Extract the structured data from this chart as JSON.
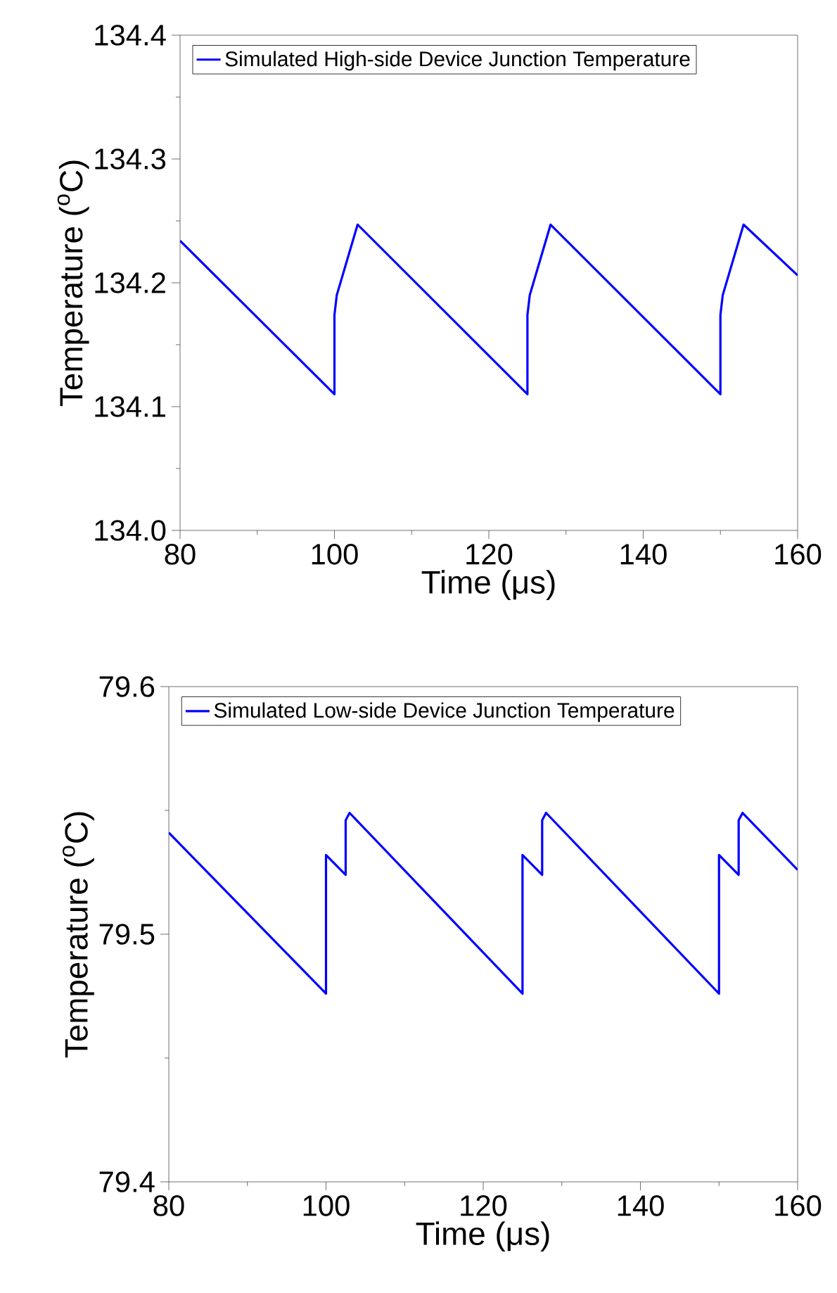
{
  "chart_data": [
    {
      "type": "line",
      "xlabel": "Time (μs)",
      "ylabel": "Temperature ($^{o}$C)",
      "xlim": [
        80,
        160
      ],
      "ylim": [
        134.0,
        134.4
      ],
      "xticks": [
        80,
        100,
        120,
        140,
        160
      ],
      "yticks": [
        {
          "value": 134.0,
          "label": "134.0"
        },
        {
          "value": 134.1,
          "label": "134.1"
        },
        {
          "value": 134.2,
          "label": "134.2"
        },
        {
          "value": 134.3,
          "label": "134.3"
        },
        {
          "value": 134.4,
          "label": "134.4"
        }
      ],
      "legend": "top left",
      "series": [
        {
          "name": "Simulated High-side Device Junction Temperature",
          "color": "#0000ff",
          "x": [
            80,
            100,
            100,
            100.3,
            103,
            125,
            125,
            125.3,
            128,
            150,
            150,
            150.3,
            153,
            160
          ],
          "values": [
            134.234,
            134.11,
            134.174,
            134.19,
            134.247,
            134.11,
            134.174,
            134.19,
            134.247,
            134.11,
            134.174,
            134.19,
            134.247,
            134.206
          ]
        }
      ]
    },
    {
      "type": "line",
      "xlabel": "Time (μs)",
      "ylabel": "Temperature ($^{o}$C)",
      "xlim": [
        80,
        160
      ],
      "ylim": [
        79.4,
        79.6
      ],
      "xticks": [
        80,
        100,
        120,
        140,
        160
      ],
      "yticks": [
        {
          "value": 79.4,
          "label": "79.4"
        },
        {
          "value": 79.5,
          "label": "79.5"
        },
        {
          "value": 79.6,
          "label": "79.6"
        }
      ],
      "legend": "top left",
      "series": [
        {
          "name": "Simulated Low-side Device Junction Temperature",
          "color": "#0000ff",
          "x": [
            80,
            100,
            100,
            102.5,
            102.5,
            103,
            125,
            125,
            127.5,
            127.5,
            128,
            150,
            150,
            152.5,
            152.5,
            153,
            160
          ],
          "values": [
            79.541,
            79.476,
            79.532,
            79.524,
            79.546,
            79.549,
            79.476,
            79.532,
            79.524,
            79.546,
            79.549,
            79.476,
            79.532,
            79.524,
            79.546,
            79.549,
            79.526
          ]
        }
      ]
    }
  ]
}
